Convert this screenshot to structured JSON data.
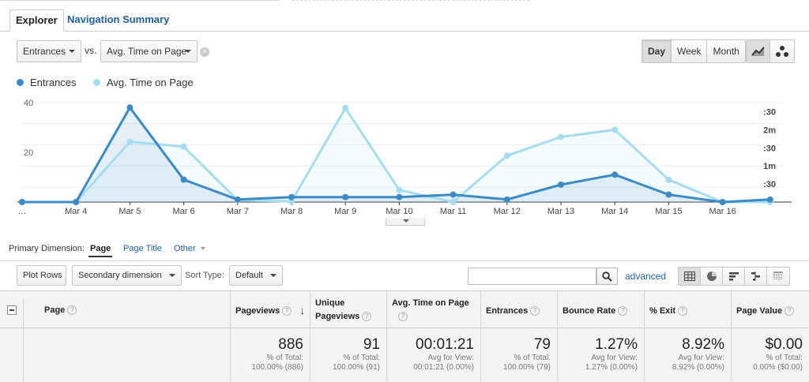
{
  "tabs": {
    "explorer": "Explorer",
    "nav_summary": "Navigation Summary"
  },
  "metric_select": {
    "primary": "Entrances",
    "vs": "vs.",
    "secondary": "Avg. Time on Page"
  },
  "periods": [
    "Day",
    "Week",
    "Month"
  ],
  "period_selected": "Day",
  "chart_type_buttons": [
    "line-chart-icon",
    "motion-chart-icon"
  ],
  "legend": [
    {
      "name": "Entrances",
      "color": "#3a8bc6"
    },
    {
      "name": "Avg. Time on Page",
      "color": "#a6dcf0"
    }
  ],
  "chart_data": {
    "type": "line",
    "x": [
      "…",
      "Mar 4",
      "Mar 5",
      "Mar 6",
      "Mar 7",
      "Mar 8",
      "Mar 9",
      "Mar 10",
      "Mar 11",
      "Mar 12",
      "Mar 13",
      "Mar 14",
      "Mar 15",
      "Mar 16",
      ""
    ],
    "series": [
      {
        "name": "Entrances",
        "axis": "left",
        "color": "#3a8bc6",
        "values": [
          0,
          0,
          38,
          9,
          1,
          2,
          2,
          2,
          3,
          1,
          7,
          11,
          3,
          0,
          1
        ]
      },
      {
        "name": "Avg. Time on Page",
        "axis": "right",
        "unit": "seconds",
        "color": "#a6dcf0",
        "values": [
          0,
          0,
          100,
          92,
          3,
          1,
          156,
          20,
          0,
          77,
          108,
          120,
          37,
          0,
          0
        ]
      }
    ],
    "left_ticks": [
      "40",
      "20"
    ],
    "left_ylim": [
      0,
      40
    ],
    "right_ticks": [
      ":30",
      "2m",
      ":30",
      "1m",
      ":30"
    ],
    "right_ylim": [
      0,
      165
    ],
    "grid": true
  },
  "primary_dimension": {
    "label": "Primary Dimension:",
    "page": "Page",
    "page_title": "Page Title",
    "other": "Other"
  },
  "controls": {
    "plot_rows": "Plot Rows",
    "secondary_dimension": "Secondary dimension",
    "sort_type_label": "Sort Type:",
    "sort_type_value": "Default",
    "search_placeholder": "",
    "advanced": "advanced"
  },
  "table": {
    "headers": {
      "page": "Page",
      "pageviews": "Pageviews",
      "unique_pageviews_1": "Unique",
      "unique_pageviews_2": "Pageviews",
      "avg_time": "Avg. Time on Page",
      "entrances": "Entrances",
      "bounce_rate": "Bounce Rate",
      "exit": "% Exit",
      "page_value": "Page Value"
    },
    "totals": {
      "pageviews": {
        "value": "886",
        "sub1": "% of Total:",
        "sub2": "100.00% (886)"
      },
      "unique_pageviews": {
        "value": "91",
        "sub1": "% of Total:",
        "sub2": "100.00% (91)"
      },
      "avg_time": {
        "value": "00:01:21",
        "sub1": "Avg for View:",
        "sub2": "00:01:21 (0.00%)"
      },
      "entrances": {
        "value": "79",
        "sub1": "% of Total:",
        "sub2": "100.00% (79)"
      },
      "bounce_rate": {
        "value": "1.27%",
        "sub1": "Avg for View:",
        "sub2": "1.27% (0.00%)"
      },
      "exit": {
        "value": "8.92%",
        "sub1": "Avg for View:",
        "sub2": "8.92% (0.00%)"
      },
      "page_value": {
        "value": "$0.00",
        "sub1": "% of Total:",
        "sub2": "0.00% ($0.00)"
      }
    }
  }
}
